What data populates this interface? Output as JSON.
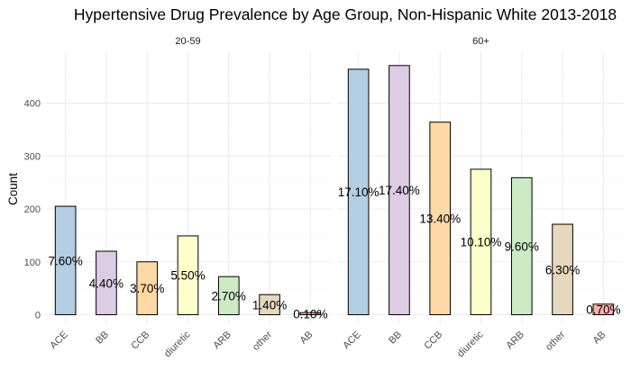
{
  "chart_data": {
    "type": "bar",
    "title": "Hypertensive Drug Prevalence by Age Group, Non-Hispanic White 2013-2018",
    "ylabel": "Count",
    "xlabel": "",
    "ylim": [
      0,
      480
    ],
    "yticks": [
      0,
      100,
      200,
      300,
      400
    ],
    "grid": true,
    "categories": [
      "ACE",
      "BB",
      "CCB",
      "diuretic",
      "ARB",
      "other",
      "AB"
    ],
    "colors": [
      "#b3cde3",
      "#decbe4",
      "#fed9a6",
      "#ffffcc",
      "#ccebc5",
      "#e5d8bd",
      "#fbb4ae"
    ],
    "facets": [
      {
        "name": "20-59",
        "values": [
          205,
          120,
          100,
          149,
          72,
          38,
          4
        ],
        "labels": [
          "7.60%",
          "4.40%",
          "3.70%",
          "5.50%",
          "2.70%",
          "1.40%",
          "0.10%"
        ]
      },
      {
        "name": "60+",
        "values": [
          464,
          471,
          364,
          275,
          259,
          171,
          20
        ],
        "labels": [
          "17.10%",
          "17.40%",
          "13.40%",
          "10.10%",
          "9.60%",
          "6.30%",
          "0.70%"
        ]
      }
    ]
  }
}
